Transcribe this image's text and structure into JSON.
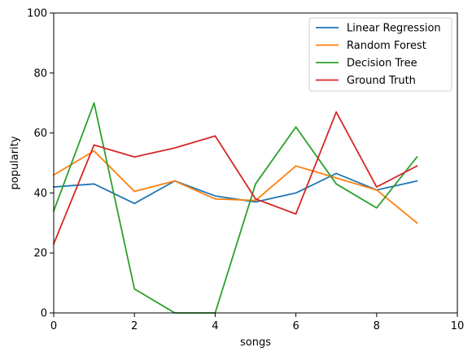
{
  "chart_data": {
    "type": "line",
    "xlabel": "songs",
    "ylabel": "popularity",
    "xlim": [
      0,
      10
    ],
    "ylim": [
      0,
      100
    ],
    "xticks": [
      0,
      2,
      4,
      6,
      8,
      10
    ],
    "yticks": [
      0,
      20,
      40,
      60,
      80,
      100
    ],
    "grid": false,
    "legend_position": "top-right",
    "x": [
      0,
      1,
      2,
      3,
      4,
      5,
      6,
      7,
      8,
      9
    ],
    "series": [
      {
        "name": "Linear Regression",
        "color": "#1f77b4",
        "values": [
          42,
          43,
          36.5,
          44,
          39,
          37,
          40,
          46.5,
          41,
          44
        ]
      },
      {
        "name": "Random Forest",
        "color": "#ff7f0e",
        "values": [
          46,
          54,
          40.5,
          44,
          38,
          37.5,
          49,
          45,
          41,
          30
        ]
      },
      {
        "name": "Decision Tree",
        "color": "#2ca02c",
        "values": [
          34,
          70,
          8,
          0,
          0,
          43,
          62,
          43,
          35,
          52
        ]
      },
      {
        "name": "Ground Truth",
        "color": "#d62728",
        "values": [
          23,
          56,
          52,
          55,
          59,
          38,
          33,
          67,
          42,
          49
        ]
      }
    ]
  }
}
